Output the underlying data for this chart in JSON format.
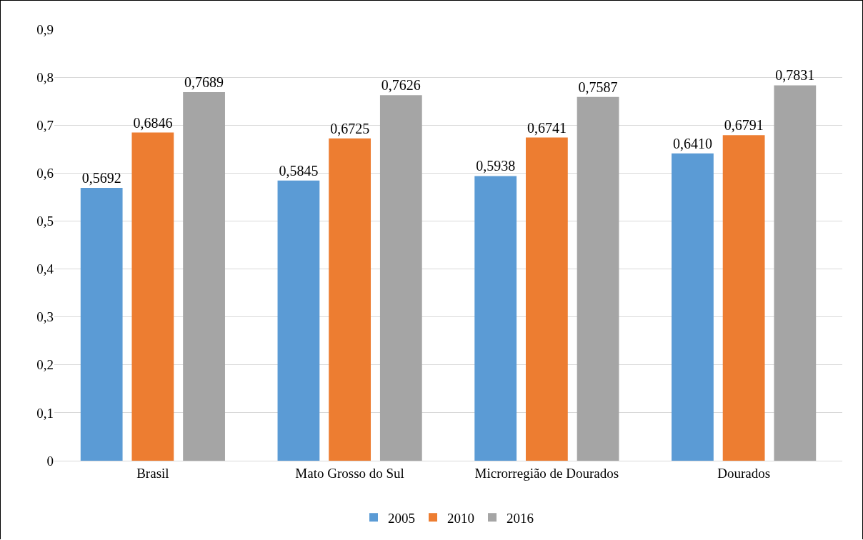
{
  "chart_data": {
    "type": "bar",
    "categories": [
      "Brasil",
      "Mato Grosso do Sul",
      "Microrregião de Dourados",
      "Dourados"
    ],
    "series": [
      {
        "name": "2005",
        "color": "#5b9bd5",
        "values": [
          0.5692,
          0.5845,
          0.5938,
          0.641
        ],
        "value_labels": [
          "0,5692",
          "0,5845",
          "0,5938",
          "0,6410"
        ]
      },
      {
        "name": "2010",
        "color": "#ed7d31",
        "values": [
          0.6846,
          0.6725,
          0.6741,
          0.6791
        ],
        "value_labels": [
          "0,6846",
          "0,6725",
          "0,6741",
          "0,6791"
        ]
      },
      {
        "name": "2016",
        "color": "#a5a5a5",
        "values": [
          0.7689,
          0.7626,
          0.7587,
          0.7831
        ],
        "value_labels": [
          "0,7689",
          "0,7626",
          "0,7587",
          "0,7831"
        ]
      }
    ],
    "ylim": [
      0,
      0.9
    ],
    "yticks": [
      0,
      {
        "value": 0.1,
        "label": "0,1"
      },
      {
        "value": 0.2,
        "label": "0,2"
      },
      {
        "value": 0.3,
        "label": "0,3"
      },
      {
        "value": 0.4,
        "label": "0,4"
      },
      {
        "value": 0.5,
        "label": "0,5"
      },
      {
        "value": 0.6,
        "label": "0,6"
      },
      {
        "value": 0.7,
        "label": "0,7"
      },
      {
        "value": 0.8,
        "label": "0,8"
      },
      {
        "value": 0.9,
        "label": "0,9"
      }
    ],
    "grid": "y",
    "legend": "bottom"
  }
}
